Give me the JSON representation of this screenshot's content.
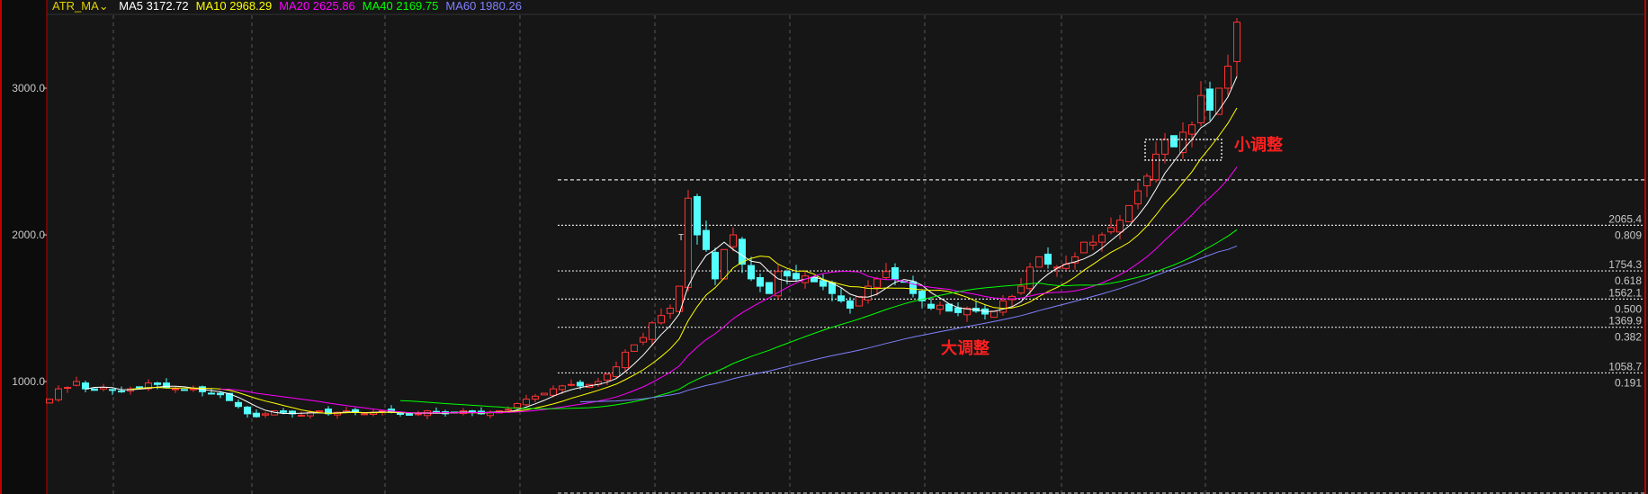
{
  "header": {
    "indicator": "ATR_MA",
    "indicator_dropdown_icon": "chevron-down-icon",
    "ma": [
      {
        "label": "MA5",
        "value": "3172.72",
        "color": "#ffffff"
      },
      {
        "label": "MA10",
        "value": "2968.29",
        "color": "#ffff00"
      },
      {
        "label": "MA20",
        "value": "2625.86",
        "color": "#ff00ff"
      },
      {
        "label": "MA40",
        "value": "2169.75",
        "color": "#00ff00"
      },
      {
        "label": "MA60",
        "value": "1980.26",
        "color": "#8080ff"
      }
    ]
  },
  "chart_data": {
    "type": "candlestick",
    "ylim": [
      700,
      3500
    ],
    "y_ticks": [
      {
        "value": 1000,
        "label": "1000.0"
      },
      {
        "value": 2000,
        "label": "2000.0"
      },
      {
        "value": 3000,
        "label": "3000.0"
      }
    ],
    "grid": true,
    "up_color": "#ff3232",
    "down_color": "#54ffff",
    "closes": [
      880,
      950,
      960,
      1000,
      950,
      940,
      960,
      940,
      930,
      950,
      960,
      990,
      980,
      960,
      950,
      940,
      950,
      930,
      920,
      910,
      870,
      830,
      780,
      760,
      780,
      800,
      790,
      780,
      770,
      790,
      800,
      780,
      790,
      800,
      790,
      780,
      790,
      800,
      790,
      780,
      770,
      780,
      800,
      790,
      780,
      790,
      800,
      790,
      780,
      790,
      800,
      810,
      850,
      880,
      900,
      920,
      950,
      970,
      980,
      970,
      980,
      1000,
      1050,
      1100,
      1200,
      1250,
      1300,
      1400,
      1450,
      1500,
      1650,
      2250,
      2000,
      1900,
      1700,
      1900,
      2000,
      1800,
      1700,
      1650,
      1600,
      1750,
      1720,
      1700,
      1720,
      1680,
      1650,
      1600,
      1550,
      1500,
      1580,
      1650,
      1700,
      1750,
      1700,
      1680,
      1600,
      1550,
      1500,
      1520,
      1480,
      1470,
      1500,
      1480,
      1460,
      1480,
      1550,
      1580,
      1650,
      1780,
      1850,
      1800,
      1780,
      1800,
      1850,
      1950,
      1950,
      2000,
      2050,
      2100,
      2200,
      2300,
      2400,
      2550,
      2650,
      2600,
      2700,
      2750,
      2950,
      2850,
      3000,
      3150,
      3450
    ],
    "moving_averages": [
      5,
      10,
      20,
      40,
      60
    ],
    "fib_levels": [
      {
        "price": 2375,
        "ratio_label": "",
        "price_label": ""
      },
      {
        "price": 2065.4,
        "price_label": "2065.4",
        "ratio_label": "0.809"
      },
      {
        "price": 1754.3,
        "price_label": "1754.3",
        "ratio_label": "0.618"
      },
      {
        "price": 1562.1,
        "price_label": "1562.1",
        "ratio_label": "0.500"
      },
      {
        "price": 1369.9,
        "price_label": "1369.9",
        "ratio_label": "0.382"
      },
      {
        "price": 1058.7,
        "price_label": "1058.7",
        "ratio_label": "0.191"
      }
    ],
    "annotations": [
      {
        "text": "小调整",
        "color": "#ff2020"
      },
      {
        "text": "大调整",
        "color": "#ff2020"
      }
    ],
    "marker": "T"
  }
}
